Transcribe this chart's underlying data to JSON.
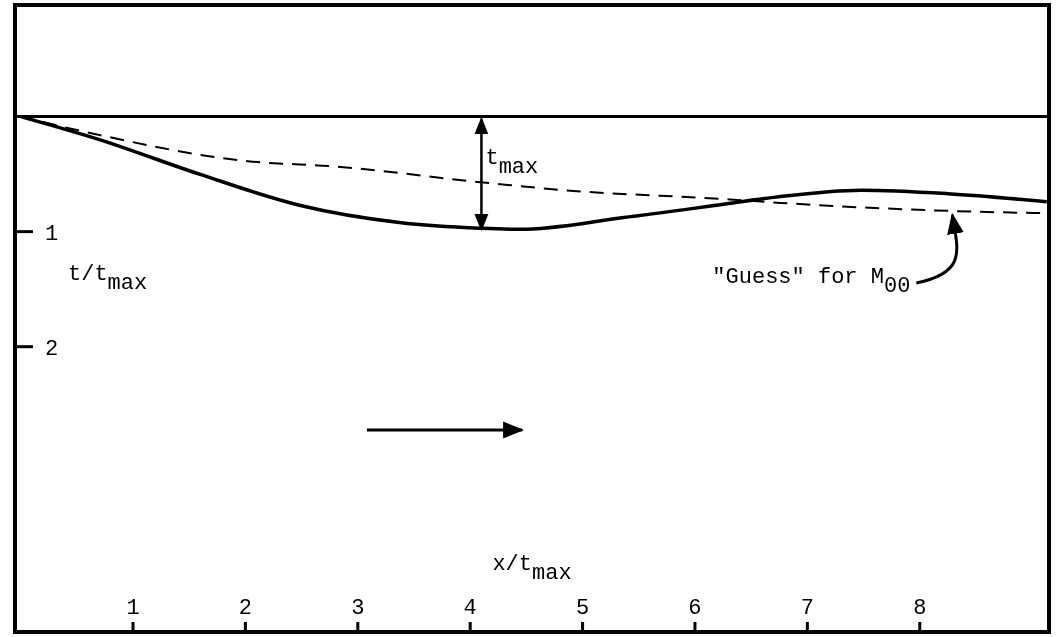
{
  "chart_data": {
    "type": "line",
    "xlabel": "x/t$_{max}$",
    "ylabel": "t/t$_{max}$",
    "xlim": [
      -0.05,
      9.15
    ],
    "ylim": [
      4.48,
      -0.97
    ],
    "xticks": [
      1,
      2,
      3,
      4,
      5,
      6,
      7,
      8
    ],
    "yticks": [
      1,
      2
    ],
    "grid": false,
    "series": [
      {
        "color": "#000000",
        "line_style": "solid",
        "x": [
          0,
          0.7,
          1.59,
          2.48,
          3.37,
          4.09,
          4.44,
          5.35,
          6.27,
          6.72,
          7.48,
          8.25,
          9.13
        ],
        "values": [
          0,
          0.2,
          0.5,
          0.77,
          0.92,
          0.97,
          0.98,
          0.88,
          0.76,
          0.7,
          0.64,
          0.67,
          0.74
        ]
      },
      {
        "color": "#000000",
        "line_style": "dashed",
        "x": [
          0,
          0.7,
          2.04,
          2.75,
          4.09,
          4.84,
          6.31,
          6.76,
          8.27,
          9.13
        ],
        "values": [
          0,
          0.16,
          0.39,
          0.43,
          0.57,
          0.64,
          0.72,
          0.75,
          0.82,
          0.84
        ]
      }
    ],
    "ref_lines": [
      {
        "axis": "y",
        "value": 0,
        "color": "#000000",
        "line_style": "solid"
      }
    ],
    "annotations": [
      {
        "text": "t$_{max}$",
        "x": 4.1,
        "y": 1
      },
      {
        "text": "\"Guess\" for M$_{00}$",
        "x": 8.29,
        "y": 0.82
      }
    ]
  }
}
